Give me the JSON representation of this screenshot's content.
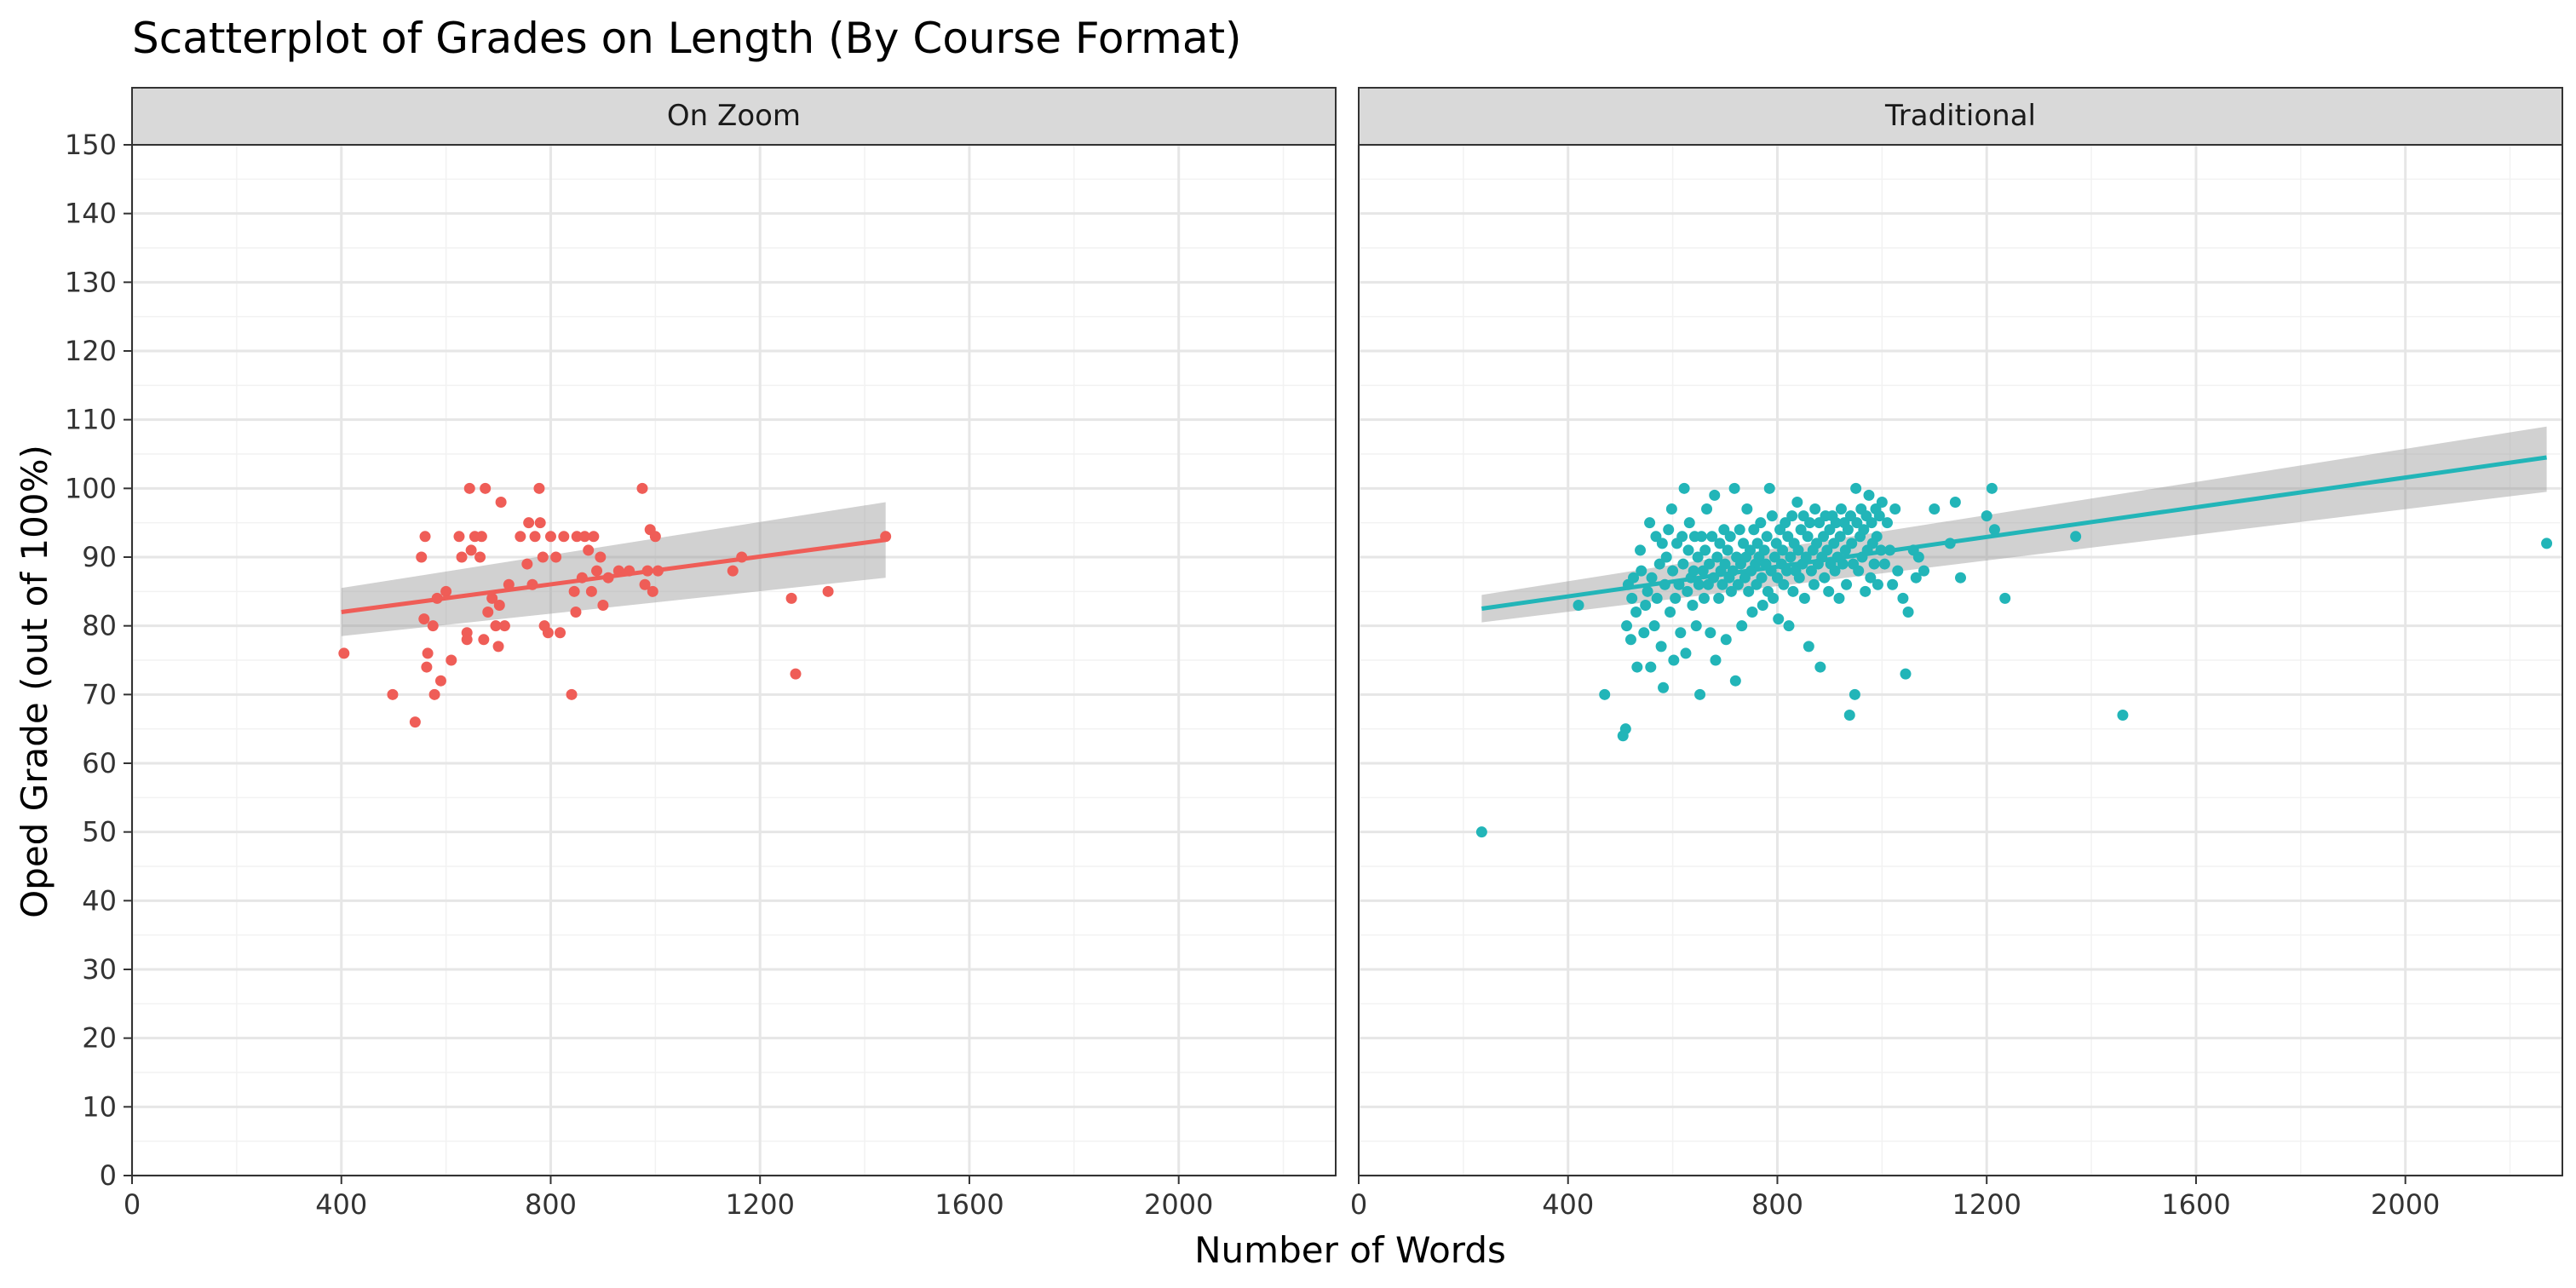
{
  "chart_data": {
    "type": "scatter",
    "title": "Scatterplot of Grades on Length (By Course Format)",
    "xlabel": "Number of Words",
    "ylabel": "Oped Grade (out of 100%)",
    "xlim": [
      0,
      2300
    ],
    "ylim": [
      0,
      150
    ],
    "x_ticks": [
      0,
      400,
      800,
      1200,
      1600,
      2000
    ],
    "y_ticks": [
      0,
      10,
      20,
      30,
      40,
      50,
      60,
      70,
      80,
      90,
      100,
      110,
      120,
      130,
      140,
      150
    ],
    "grid": true,
    "legend": "none",
    "facets": [
      {
        "label": "On Zoom",
        "color": "#ef5d57",
        "points": [
          [
            405,
            76
          ],
          [
            498,
            70
          ],
          [
            541,
            66
          ],
          [
            553,
            90
          ],
          [
            558,
            81
          ],
          [
            560,
            93
          ],
          [
            563,
            74
          ],
          [
            565,
            76
          ],
          [
            575,
            80
          ],
          [
            578,
            70
          ],
          [
            583,
            84
          ],
          [
            590,
            72
          ],
          [
            600,
            85
          ],
          [
            610,
            75
          ],
          [
            625,
            93
          ],
          [
            630,
            90
          ],
          [
            640,
            79
          ],
          [
            640,
            78
          ],
          [
            645,
            100
          ],
          [
            648,
            91
          ],
          [
            655,
            93
          ],
          [
            665,
            90
          ],
          [
            668,
            93
          ],
          [
            675,
            100
          ],
          [
            672,
            78
          ],
          [
            680,
            82
          ],
          [
            688,
            84
          ],
          [
            695,
            80
          ],
          [
            700,
            77
          ],
          [
            702,
            83
          ],
          [
            705,
            98
          ],
          [
            712,
            80
          ],
          [
            720,
            86
          ],
          [
            742,
            93
          ],
          [
            755,
            89
          ],
          [
            758,
            95
          ],
          [
            765,
            86
          ],
          [
            770,
            93
          ],
          [
            778,
            100
          ],
          [
            780,
            95
          ],
          [
            785,
            90
          ],
          [
            788,
            80
          ],
          [
            795,
            79
          ],
          [
            800,
            93
          ],
          [
            810,
            90
          ],
          [
            818,
            79
          ],
          [
            825,
            93
          ],
          [
            840,
            70
          ],
          [
            845,
            85
          ],
          [
            848,
            82
          ],
          [
            850,
            93
          ],
          [
            860,
            87
          ],
          [
            865,
            93
          ],
          [
            872,
            91
          ],
          [
            878,
            85
          ],
          [
            882,
            93
          ],
          [
            888,
            88
          ],
          [
            895,
            90
          ],
          [
            900,
            83
          ],
          [
            910,
            87
          ],
          [
            930,
            88
          ],
          [
            950,
            88
          ],
          [
            975,
            100
          ],
          [
            980,
            86
          ],
          [
            985,
            88
          ],
          [
            990,
            94
          ],
          [
            995,
            85
          ],
          [
            1000,
            93
          ],
          [
            1005,
            88
          ],
          [
            1148,
            88
          ],
          [
            1165,
            90
          ],
          [
            1260,
            84
          ],
          [
            1268,
            73
          ],
          [
            1330,
            85
          ],
          [
            1440,
            93
          ]
        ],
        "fit": {
          "x": [
            400,
            1440
          ],
          "y": [
            82,
            92.5
          ],
          "band_low": [
            78.5,
            87
          ],
          "band_high": [
            85.5,
            98
          ]
        }
      },
      {
        "label": "Traditional",
        "color": "#22b5b8",
        "points": [
          [
            235,
            50
          ],
          [
            420,
            83
          ],
          [
            470,
            70
          ],
          [
            505,
            64
          ],
          [
            510,
            65
          ],
          [
            512,
            80
          ],
          [
            515,
            86
          ],
          [
            520,
            78
          ],
          [
            522,
            84
          ],
          [
            525,
            87
          ],
          [
            530,
            82
          ],
          [
            532,
            74
          ],
          [
            538,
            91
          ],
          [
            540,
            88
          ],
          [
            545,
            79
          ],
          [
            548,
            83
          ],
          [
            552,
            85
          ],
          [
            556,
            95
          ],
          [
            558,
            74
          ],
          [
            560,
            87
          ],
          [
            565,
            80
          ],
          [
            568,
            93
          ],
          [
            570,
            84
          ],
          [
            575,
            89
          ],
          [
            578,
            77
          ],
          [
            580,
            92
          ],
          [
            582,
            71
          ],
          [
            585,
            86
          ],
          [
            588,
            90
          ],
          [
            592,
            94
          ],
          [
            595,
            82
          ],
          [
            598,
            97
          ],
          [
            600,
            88
          ],
          [
            602,
            75
          ],
          [
            605,
            84
          ],
          [
            608,
            92
          ],
          [
            612,
            86
          ],
          [
            615,
            79
          ],
          [
            618,
            93
          ],
          [
            620,
            89
          ],
          [
            622,
            100
          ],
          [
            625,
            76
          ],
          [
            628,
            85
          ],
          [
            630,
            91
          ],
          [
            632,
            95
          ],
          [
            635,
            87
          ],
          [
            638,
            83
          ],
          [
            640,
            88
          ],
          [
            642,
            93
          ],
          [
            645,
            80
          ],
          [
            648,
            90
          ],
          [
            650,
            86
          ],
          [
            652,
            70
          ],
          [
            655,
            93
          ],
          [
            658,
            88
          ],
          [
            660,
            84
          ],
          [
            662,
            91
          ],
          [
            665,
            97
          ],
          [
            668,
            86
          ],
          [
            670,
            89
          ],
          [
            672,
            79
          ],
          [
            675,
            93
          ],
          [
            678,
            87
          ],
          [
            680,
            99
          ],
          [
            682,
            75
          ],
          [
            685,
            90
          ],
          [
            688,
            84
          ],
          [
            690,
            92
          ],
          [
            692,
            88
          ],
          [
            695,
            86
          ],
          [
            698,
            94
          ],
          [
            700,
            89
          ],
          [
            702,
            78
          ],
          [
            705,
            91
          ],
          [
            708,
            87
          ],
          [
            710,
            93
          ],
          [
            712,
            85
          ],
          [
            715,
            88
          ],
          [
            718,
            100
          ],
          [
            720,
            72
          ],
          [
            722,
            90
          ],
          [
            725,
            86
          ],
          [
            728,
            94
          ],
          [
            730,
            89
          ],
          [
            732,
            80
          ],
          [
            735,
            92
          ],
          [
            738,
            87
          ],
          [
            740,
            90
          ],
          [
            742,
            97
          ],
          [
            745,
            85
          ],
          [
            748,
            91
          ],
          [
            750,
            88
          ],
          [
            752,
            82
          ],
          [
            755,
            94
          ],
          [
            758,
            89
          ],
          [
            760,
            86
          ],
          [
            762,
            92
          ],
          [
            765,
            90
          ],
          [
            768,
            95
          ],
          [
            770,
            87
          ],
          [
            772,
            83
          ],
          [
            775,
            91
          ],
          [
            778,
            89
          ],
          [
            780,
            93
          ],
          [
            782,
            85
          ],
          [
            785,
            100
          ],
          [
            788,
            88
          ],
          [
            790,
            96
          ],
          [
            792,
            84
          ],
          [
            795,
            90
          ],
          [
            798,
            92
          ],
          [
            800,
            87
          ],
          [
            802,
            81
          ],
          [
            805,
            94
          ],
          [
            808,
            89
          ],
          [
            810,
            91
          ],
          [
            812,
            86
          ],
          [
            815,
            95
          ],
          [
            818,
            88
          ],
          [
            820,
            93
          ],
          [
            822,
            80
          ],
          [
            825,
            90
          ],
          [
            828,
            96
          ],
          [
            830,
            85
          ],
          [
            832,
            92
          ],
          [
            835,
            88
          ],
          [
            838,
            98
          ],
          [
            840,
            91
          ],
          [
            842,
            87
          ],
          [
            845,
            94
          ],
          [
            848,
            89
          ],
          [
            850,
            96
          ],
          [
            852,
            84
          ],
          [
            855,
            90
          ],
          [
            858,
            93
          ],
          [
            860,
            77
          ],
          [
            862,
            95
          ],
          [
            865,
            88
          ],
          [
            868,
            91
          ],
          [
            870,
            86
          ],
          [
            872,
            97
          ],
          [
            875,
            92
          ],
          [
            878,
            89
          ],
          [
            880,
            95
          ],
          [
            882,
            74
          ],
          [
            885,
            90
          ],
          [
            888,
            93
          ],
          [
            890,
            87
          ],
          [
            892,
            96
          ],
          [
            895,
            91
          ],
          [
            898,
            85
          ],
          [
            900,
            94
          ],
          [
            902,
            89
          ],
          [
            905,
            96
          ],
          [
            908,
            92
          ],
          [
            910,
            88
          ],
          [
            912,
            95
          ],
          [
            915,
            90
          ],
          [
            918,
            84
          ],
          [
            920,
            93
          ],
          [
            922,
            97
          ],
          [
            925,
            89
          ],
          [
            928,
            95
          ],
          [
            930,
            91
          ],
          [
            932,
            86
          ],
          [
            935,
            94
          ],
          [
            938,
            67
          ],
          [
            940,
            96
          ],
          [
            942,
            92
          ],
          [
            945,
            89
          ],
          [
            948,
            70
          ],
          [
            950,
            100
          ],
          [
            952,
            95
          ],
          [
            955,
            88
          ],
          [
            958,
            93
          ],
          [
            960,
            97
          ],
          [
            962,
            90
          ],
          [
            965,
            94
          ],
          [
            968,
            85
          ],
          [
            970,
            96
          ],
          [
            972,
            91
          ],
          [
            975,
            99
          ],
          [
            978,
            87
          ],
          [
            980,
            95
          ],
          [
            982,
            92
          ],
          [
            985,
            89
          ],
          [
            988,
            97
          ],
          [
            990,
            93
          ],
          [
            992,
            86
          ],
          [
            995,
            96
          ],
          [
            998,
            91
          ],
          [
            1000,
            98
          ],
          [
            1005,
            89
          ],
          [
            1010,
            95
          ],
          [
            1015,
            91
          ],
          [
            1020,
            86
          ],
          [
            1025,
            97
          ],
          [
            1030,
            88
          ],
          [
            1040,
            84
          ],
          [
            1045,
            73
          ],
          [
            1050,
            82
          ],
          [
            1060,
            91
          ],
          [
            1065,
            87
          ],
          [
            1070,
            90
          ],
          [
            1080,
            88
          ],
          [
            1100,
            97
          ],
          [
            1130,
            92
          ],
          [
            1140,
            98
          ],
          [
            1150,
            87
          ],
          [
            1200,
            96
          ],
          [
            1210,
            100
          ],
          [
            1215,
            94
          ],
          [
            1235,
            84
          ],
          [
            1370,
            93
          ],
          [
            1460,
            67
          ],
          [
            2270,
            92
          ]
        ],
        "fit": {
          "x": [
            235,
            2270
          ],
          "y": [
            82.5,
            104.5
          ],
          "band_low": [
            80.5,
            99.5
          ],
          "band_high": [
            84.5,
            109
          ]
        }
      }
    ]
  }
}
